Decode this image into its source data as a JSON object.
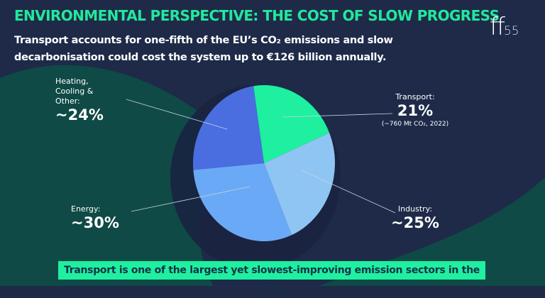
{
  "header": {
    "title": "ENVIRONMENTAL PERSPECTIVE: THE COST OF SLOW PROGRESS",
    "subtitle": "Transport accounts for one-fifth of the EU’s CO₂ emissions and slow decarbonisation could cost the system up to €126 billion annually.",
    "logo_main": "ff",
    "logo_sub": "55"
  },
  "chart_data": {
    "type": "pie",
    "title": "ENVIRONMENTAL PERSPECTIVE: THE COST OF SLOW PROGRESS",
    "slices": [
      {
        "name": "Transport:",
        "label": "21%",
        "value": 21,
        "note": "(~760 Mt CO₂, 2022)",
        "color": "#1ef0a0"
      },
      {
        "name": "Industry:",
        "label": "~25%",
        "value": 25,
        "color": "#8fc5f3"
      },
      {
        "name": "Energy:",
        "label": "~30%",
        "value": 30,
        "color": "#6aa9f6"
      },
      {
        "name": "Heating, Cooling & Other:",
        "label": "~24%",
        "value": 24,
        "color": "#4a6ee0"
      }
    ]
  },
  "banner": "Transport is one of the largest yet slowest-improving emission sectors in the EU"
}
